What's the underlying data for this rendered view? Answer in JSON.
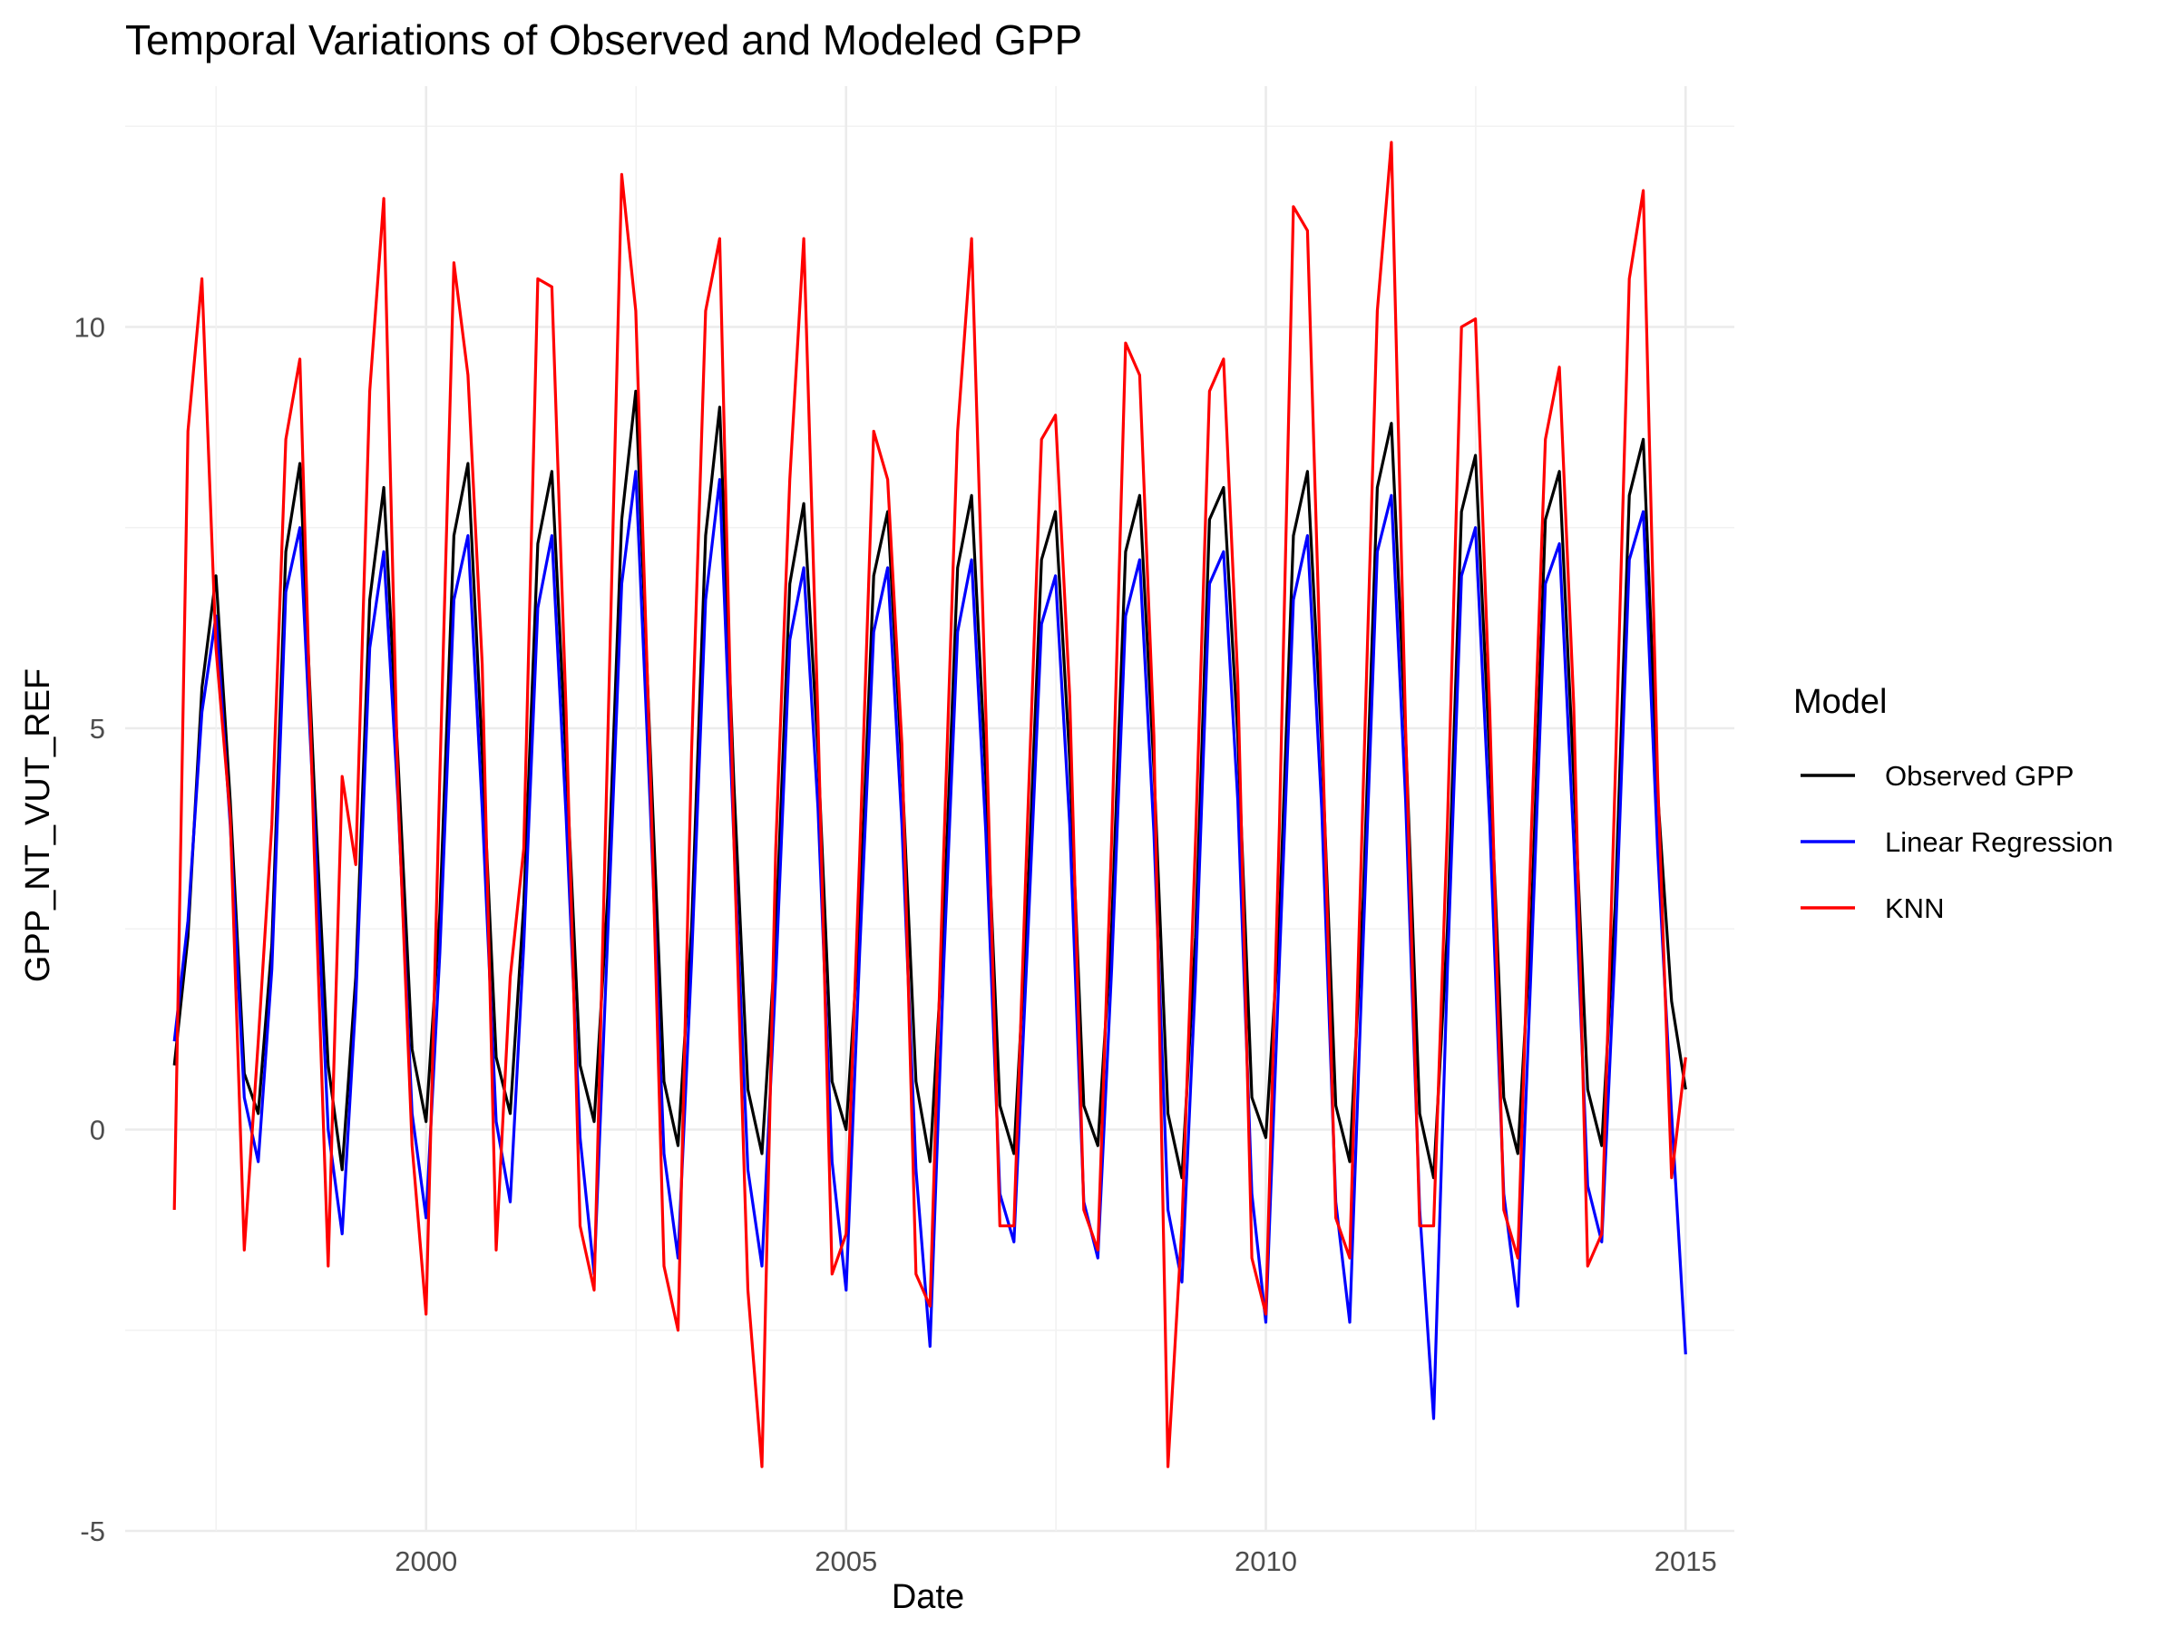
{
  "chart_data": {
    "type": "line",
    "title": "Temporal Variations of Observed and Modeled GPP",
    "xlabel": "Date",
    "ylabel": "GPP_NT_VUT_REF",
    "x_type": "date",
    "xlim": [
      "1996-06-01",
      "2015-08-01"
    ],
    "ylim": [
      -5,
      13
    ],
    "grid": true,
    "x_ticks": [
      {
        "date": "2000-01-01",
        "label": "2000"
      },
      {
        "date": "2005-01-01",
        "label": "2005"
      },
      {
        "date": "2010-01-01",
        "label": "2010"
      },
      {
        "date": "2015-01-01",
        "label": "2015"
      }
    ],
    "y_ticks": [
      {
        "value": -5,
        "label": "-5"
      },
      {
        "value": 0,
        "label": "0"
      },
      {
        "value": 5,
        "label": "5"
      },
      {
        "value": 10,
        "label": "10"
      }
    ],
    "legend": {
      "title": "Model",
      "position": "right"
    },
    "series": [
      {
        "name": "Observed GPP",
        "color": "#000000",
        "x": [
          "1997-01-01",
          "1997-03-01",
          "1997-05-01",
          "1997-07-01",
          "1997-09-01",
          "1997-11-01",
          "1998-01-01",
          "1998-03-01",
          "1998-05-01",
          "1998-07-01",
          "1998-09-01",
          "1998-11-01",
          "1999-01-01",
          "1999-03-01",
          "1999-05-01",
          "1999-07-01",
          "1999-09-01",
          "1999-11-01",
          "2000-01-01",
          "2000-03-01",
          "2000-05-01",
          "2000-07-01",
          "2000-09-01",
          "2000-11-01",
          "2001-01-01",
          "2001-03-01",
          "2001-05-01",
          "2001-07-01",
          "2001-09-01",
          "2001-11-01",
          "2002-01-01",
          "2002-03-01",
          "2002-05-01",
          "2002-07-01",
          "2002-09-01",
          "2002-11-01",
          "2003-01-01",
          "2003-03-01",
          "2003-05-01",
          "2003-07-01",
          "2003-09-01",
          "2003-11-01",
          "2004-01-01",
          "2004-03-01",
          "2004-05-01",
          "2004-07-01",
          "2004-09-01",
          "2004-11-01",
          "2005-01-01",
          "2005-03-01",
          "2005-05-01",
          "2005-07-01",
          "2005-09-01",
          "2005-11-01",
          "2006-01-01",
          "2006-03-01",
          "2006-05-01",
          "2006-07-01",
          "2006-09-01",
          "2006-11-01",
          "2007-01-01",
          "2007-03-01",
          "2007-05-01",
          "2007-07-01",
          "2007-09-01",
          "2007-11-01",
          "2008-01-01",
          "2008-03-01",
          "2008-05-01",
          "2008-07-01",
          "2008-09-01",
          "2008-11-01",
          "2009-01-01",
          "2009-03-01",
          "2009-05-01",
          "2009-07-01",
          "2009-09-01",
          "2009-11-01",
          "2010-01-01",
          "2010-03-01",
          "2010-05-01",
          "2010-07-01",
          "2010-09-01",
          "2010-11-01",
          "2011-01-01",
          "2011-03-01",
          "2011-05-01",
          "2011-07-01",
          "2011-09-01",
          "2011-11-01",
          "2012-01-01",
          "2012-03-01",
          "2012-05-01",
          "2012-07-01",
          "2012-09-01",
          "2012-11-01",
          "2013-01-01",
          "2013-03-01",
          "2013-05-01",
          "2013-07-01",
          "2013-09-01",
          "2013-11-01",
          "2014-01-01",
          "2014-03-01",
          "2014-05-01",
          "2014-07-01",
          "2014-09-01",
          "2014-11-01",
          "2015-01-01"
        ],
        "y": [
          0.8,
          2.4,
          5.5,
          6.9,
          4.1,
          0.7,
          0.2,
          2.3,
          7.2,
          8.3,
          4.3,
          0.8,
          -0.5,
          1.9,
          6.6,
          8.0,
          4.6,
          1.0,
          0.1,
          2.7,
          7.4,
          8.3,
          4.7,
          0.9,
          0.2,
          2.8,
          7.3,
          8.2,
          4.6,
          0.8,
          0.1,
          2.9,
          7.6,
          9.2,
          4.8,
          0.6,
          -0.2,
          2.5,
          7.4,
          9.0,
          4.3,
          0.5,
          -0.3,
          2.4,
          6.8,
          7.8,
          4.7,
          0.6,
          0.0,
          2.6,
          6.9,
          7.7,
          4.5,
          0.6,
          -0.4,
          2.5,
          7.0,
          7.9,
          4.4,
          0.3,
          -0.3,
          2.8,
          7.1,
          7.7,
          4.6,
          0.3,
          -0.2,
          2.5,
          7.2,
          7.9,
          4.5,
          0.2,
          -0.6,
          2.4,
          7.6,
          8.0,
          4.9,
          0.4,
          -0.1,
          2.6,
          7.4,
          8.2,
          4.8,
          0.3,
          -0.4,
          2.9,
          8.0,
          8.8,
          4.9,
          0.2,
          -0.6,
          2.5,
          7.7,
          8.4,
          4.6,
          0.4,
          -0.3,
          2.6,
          7.6,
          8.2,
          4.4,
          0.5,
          -0.2,
          2.8,
          7.9,
          8.6,
          4.2,
          1.6,
          0.5
        ]
      },
      {
        "name": "Linear Regression",
        "color": "#0000ff",
        "x": [
          "1997-01-01",
          "1997-03-01",
          "1997-05-01",
          "1997-07-01",
          "1997-09-01",
          "1997-11-01",
          "1998-01-01",
          "1998-03-01",
          "1998-05-01",
          "1998-07-01",
          "1998-09-01",
          "1998-11-01",
          "1999-01-01",
          "1999-03-01",
          "1999-05-01",
          "1999-07-01",
          "1999-09-01",
          "1999-11-01",
          "2000-01-01",
          "2000-03-01",
          "2000-05-01",
          "2000-07-01",
          "2000-09-01",
          "2000-11-01",
          "2001-01-01",
          "2001-03-01",
          "2001-05-01",
          "2001-07-01",
          "2001-09-01",
          "2001-11-01",
          "2002-01-01",
          "2002-03-01",
          "2002-05-01",
          "2002-07-01",
          "2002-09-01",
          "2002-11-01",
          "2003-01-01",
          "2003-03-01",
          "2003-05-01",
          "2003-07-01",
          "2003-09-01",
          "2003-11-01",
          "2004-01-01",
          "2004-03-01",
          "2004-05-01",
          "2004-07-01",
          "2004-09-01",
          "2004-11-01",
          "2005-01-01",
          "2005-03-01",
          "2005-05-01",
          "2005-07-01",
          "2005-09-01",
          "2005-11-01",
          "2006-01-01",
          "2006-03-01",
          "2006-05-01",
          "2006-07-01",
          "2006-09-01",
          "2006-11-01",
          "2007-01-01",
          "2007-03-01",
          "2007-05-01",
          "2007-07-01",
          "2007-09-01",
          "2007-11-01",
          "2008-01-01",
          "2008-03-01",
          "2008-05-01",
          "2008-07-01",
          "2008-09-01",
          "2008-11-01",
          "2009-01-01",
          "2009-03-01",
          "2009-05-01",
          "2009-07-01",
          "2009-09-01",
          "2009-11-01",
          "2010-01-01",
          "2010-03-01",
          "2010-05-01",
          "2010-07-01",
          "2010-09-01",
          "2010-11-01",
          "2011-01-01",
          "2011-03-01",
          "2011-05-01",
          "2011-07-01",
          "2011-09-01",
          "2011-11-01",
          "2012-01-01",
          "2012-03-01",
          "2012-05-01",
          "2012-07-01",
          "2012-09-01",
          "2012-11-01",
          "2013-01-01",
          "2013-03-01",
          "2013-05-01",
          "2013-07-01",
          "2013-09-01",
          "2013-11-01",
          "2014-01-01",
          "2014-03-01",
          "2014-05-01",
          "2014-07-01",
          "2014-09-01",
          "2014-11-01",
          "2015-01-01"
        ],
        "y": [
          1.1,
          2.6,
          5.2,
          6.4,
          3.8,
          0.4,
          -0.4,
          2.0,
          6.7,
          7.5,
          3.9,
          0.0,
          -1.3,
          1.6,
          6.0,
          7.2,
          4.1,
          0.2,
          -1.1,
          2.2,
          6.6,
          7.4,
          4.0,
          0.1,
          -0.9,
          2.3,
          6.5,
          7.4,
          3.9,
          -0.1,
          -1.8,
          2.4,
          6.8,
          8.2,
          4.1,
          -0.3,
          -1.6,
          2.1,
          6.6,
          8.1,
          3.6,
          -0.5,
          -1.7,
          1.9,
          6.1,
          7.0,
          4.0,
          -0.4,
          -2.0,
          2.2,
          6.2,
          7.0,
          3.8,
          -0.5,
          -2.7,
          2.0,
          6.2,
          7.1,
          3.7,
          -0.8,
          -1.4,
          2.3,
          6.3,
          6.9,
          3.8,
          -0.9,
          -1.6,
          2.0,
          6.4,
          7.1,
          3.7,
          -1.0,
          -1.9,
          1.9,
          6.8,
          7.2,
          4.1,
          -0.8,
          -2.4,
          2.1,
          6.6,
          7.4,
          4.0,
          -0.9,
          -2.4,
          2.4,
          7.2,
          7.9,
          4.1,
          -1.0,
          -3.6,
          2.0,
          6.9,
          7.5,
          3.8,
          -0.8,
          -2.2,
          2.1,
          6.8,
          7.3,
          3.6,
          -0.7,
          -1.4,
          2.3,
          7.1,
          7.7,
          3.5,
          0.2,
          -2.8
        ]
      },
      {
        "name": "KNN",
        "color": "#ff0000",
        "x": [
          "1997-01-01",
          "1997-03-01",
          "1997-05-01",
          "1997-07-01",
          "1997-09-01",
          "1997-11-01",
          "1998-01-01",
          "1998-03-01",
          "1998-05-01",
          "1998-07-01",
          "1998-09-01",
          "1998-11-01",
          "1999-01-01",
          "1999-03-01",
          "1999-05-01",
          "1999-07-01",
          "1999-09-01",
          "1999-11-01",
          "2000-01-01",
          "2000-03-01",
          "2000-05-01",
          "2000-07-01",
          "2000-09-01",
          "2000-11-01",
          "2001-01-01",
          "2001-03-01",
          "2001-05-01",
          "2001-07-01",
          "2001-09-01",
          "2001-11-01",
          "2002-01-01",
          "2002-03-01",
          "2002-05-01",
          "2002-07-01",
          "2002-09-01",
          "2002-11-01",
          "2003-01-01",
          "2003-03-01",
          "2003-05-01",
          "2003-07-01",
          "2003-09-01",
          "2003-11-01",
          "2004-01-01",
          "2004-03-01",
          "2004-05-01",
          "2004-07-01",
          "2004-09-01",
          "2004-11-01",
          "2005-01-01",
          "2005-03-01",
          "2005-05-01",
          "2005-07-01",
          "2005-09-01",
          "2005-11-01",
          "2006-01-01",
          "2006-03-01",
          "2006-05-01",
          "2006-07-01",
          "2006-09-01",
          "2006-11-01",
          "2007-01-01",
          "2007-03-01",
          "2007-05-01",
          "2007-07-01",
          "2007-09-01",
          "2007-11-01",
          "2008-01-01",
          "2008-03-01",
          "2008-05-01",
          "2008-07-01",
          "2008-09-01",
          "2008-11-01",
          "2009-01-01",
          "2009-03-01",
          "2009-05-01",
          "2009-07-01",
          "2009-09-01",
          "2009-11-01",
          "2010-01-01",
          "2010-03-01",
          "2010-05-01",
          "2010-07-01",
          "2010-09-01",
          "2010-11-01",
          "2011-01-01",
          "2011-03-01",
          "2011-05-01",
          "2011-07-01",
          "2011-09-01",
          "2011-11-01",
          "2012-01-01",
          "2012-03-01",
          "2012-05-01",
          "2012-07-01",
          "2012-09-01",
          "2012-11-01",
          "2013-01-01",
          "2013-03-01",
          "2013-05-01",
          "2013-07-01",
          "2013-09-01",
          "2013-11-01",
          "2014-01-01",
          "2014-03-01",
          "2014-05-01",
          "2014-07-01",
          "2014-09-01",
          "2014-11-01",
          "2015-01-01"
        ],
        "y": [
          -1.0,
          8.7,
          10.6,
          6.0,
          3.9,
          -1.5,
          1.1,
          3.8,
          8.6,
          9.6,
          3.5,
          -1.7,
          4.4,
          3.3,
          9.2,
          11.6,
          4.2,
          -0.2,
          -2.3,
          4.4,
          10.8,
          9.4,
          5.8,
          -1.5,
          1.9,
          3.5,
          10.6,
          10.5,
          5.2,
          -1.2,
          -2.0,
          4.8,
          11.9,
          10.2,
          4.6,
          -1.7,
          -2.5,
          4.7,
          10.2,
          11.1,
          3.6,
          -2.0,
          -4.2,
          3.5,
          8.1,
          11.1,
          5.1,
          -1.8,
          -1.3,
          3.4,
          8.7,
          8.1,
          4.8,
          -1.8,
          -2.2,
          3.4,
          8.7,
          11.1,
          5.2,
          -1.2,
          -1.2,
          3.8,
          8.6,
          8.9,
          5.4,
          -1.0,
          -1.5,
          3.6,
          9.8,
          9.4,
          4.9,
          -4.2,
          -1.2,
          3.6,
          9.2,
          9.6,
          5.6,
          -1.6,
          -2.3,
          3.8,
          11.5,
          11.2,
          5.2,
          -1.1,
          -1.6,
          4.3,
          10.2,
          12.3,
          5.0,
          -1.2,
          -1.2,
          3.8,
          10.0,
          10.1,
          5.2,
          -1.0,
          -1.6,
          3.7,
          8.6,
          9.5,
          5.3,
          -1.7,
          -1.3,
          4.4,
          10.6,
          11.7,
          4.4,
          -0.6,
          0.9
        ]
      }
    ]
  }
}
